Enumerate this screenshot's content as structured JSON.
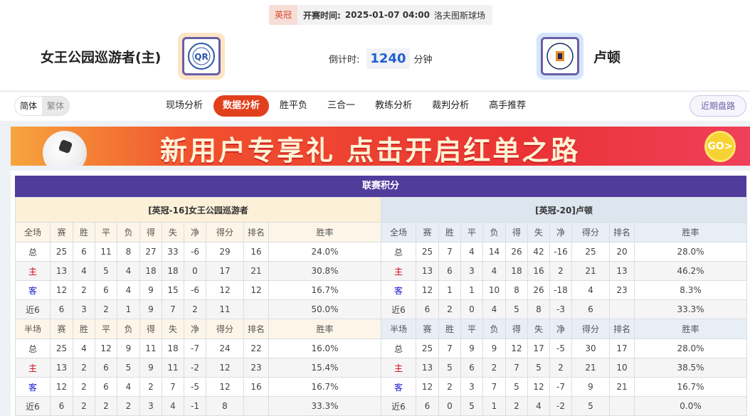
{
  "match": {
    "league": "英冠",
    "time_label": "开赛时间:",
    "time": "2025-01-07 04:00",
    "venue": "洛夫图斯球场"
  },
  "home_team": {
    "name": "女王公园巡游者(主)",
    "logo": "QPR crest"
  },
  "away_team": {
    "name": "卢顿",
    "logo": "Luton Town Football Club crest"
  },
  "countdown": {
    "label": "倒计时:",
    "value": "1240",
    "unit": "分钟"
  },
  "lang": {
    "simplified": "简体",
    "traditional": "繁体"
  },
  "tabs": [
    {
      "label": "现场分析"
    },
    {
      "label": "数据分析",
      "active": true
    },
    {
      "label": "胜平负"
    },
    {
      "label": "三合一"
    },
    {
      "label": "教练分析"
    },
    {
      "label": "裁判分析"
    },
    {
      "label": "高手推荐"
    }
  ],
  "recent_button": "近期盘路",
  "banner": {
    "text": "新用户专享礼  点击开启红单之路",
    "go": "GO>"
  },
  "standings": {
    "title": "联赛积分",
    "columns_full": [
      "全场",
      "赛",
      "胜",
      "平",
      "负",
      "得",
      "失",
      "净",
      "得分",
      "排名",
      "胜率"
    ],
    "columns_half": [
      "半场",
      "赛",
      "胜",
      "平",
      "负",
      "得",
      "失",
      "净",
      "得分",
      "排名",
      "胜率"
    ],
    "colors": {
      "home": "#d0021b",
      "away": "#1a1ad0",
      "title_bg": "#4f3c9b"
    },
    "home": {
      "header": "[英冠-16]女王公园巡游者",
      "full": [
        [
          "总",
          "25",
          "6",
          "11",
          "8",
          "27",
          "33",
          "-6",
          "29",
          "16",
          "24.0%"
        ],
        [
          "主",
          "13",
          "4",
          "5",
          "4",
          "18",
          "18",
          "0",
          "17",
          "21",
          "30.8%"
        ],
        [
          "客",
          "12",
          "2",
          "6",
          "4",
          "9",
          "15",
          "-6",
          "12",
          "12",
          "16.7%"
        ],
        [
          "近6",
          "6",
          "3",
          "2",
          "1",
          "9",
          "7",
          "2",
          "11",
          "",
          "50.0%"
        ]
      ],
      "half": [
        [
          "总",
          "25",
          "4",
          "12",
          "9",
          "11",
          "18",
          "-7",
          "24",
          "22",
          "16.0%"
        ],
        [
          "主",
          "13",
          "2",
          "6",
          "5",
          "9",
          "11",
          "-2",
          "12",
          "23",
          "15.4%"
        ],
        [
          "客",
          "12",
          "2",
          "6",
          "4",
          "2",
          "7",
          "-5",
          "12",
          "16",
          "16.7%"
        ],
        [
          "近6",
          "6",
          "2",
          "2",
          "2",
          "3",
          "4",
          "-1",
          "8",
          "",
          "33.3%"
        ]
      ]
    },
    "away": {
      "header": "[英冠-20]卢顿",
      "full": [
        [
          "总",
          "25",
          "7",
          "4",
          "14",
          "26",
          "42",
          "-16",
          "25",
          "20",
          "28.0%"
        ],
        [
          "主",
          "13",
          "6",
          "3",
          "4",
          "18",
          "16",
          "2",
          "21",
          "13",
          "46.2%"
        ],
        [
          "客",
          "12",
          "1",
          "1",
          "10",
          "8",
          "26",
          "-18",
          "4",
          "23",
          "8.3%"
        ],
        [
          "近6",
          "6",
          "2",
          "0",
          "4",
          "5",
          "8",
          "-3",
          "6",
          "",
          "33.3%"
        ]
      ],
      "half": [
        [
          "总",
          "25",
          "7",
          "9",
          "9",
          "12",
          "17",
          "-5",
          "30",
          "17",
          "28.0%"
        ],
        [
          "主",
          "13",
          "5",
          "6",
          "2",
          "7",
          "5",
          "2",
          "21",
          "10",
          "38.5%"
        ],
        [
          "客",
          "12",
          "2",
          "3",
          "7",
          "5",
          "12",
          "-7",
          "9",
          "21",
          "16.7%"
        ],
        [
          "近6",
          "6",
          "0",
          "5",
          "1",
          "2",
          "4",
          "-2",
          "5",
          "",
          "0.0%"
        ]
      ]
    }
  }
}
